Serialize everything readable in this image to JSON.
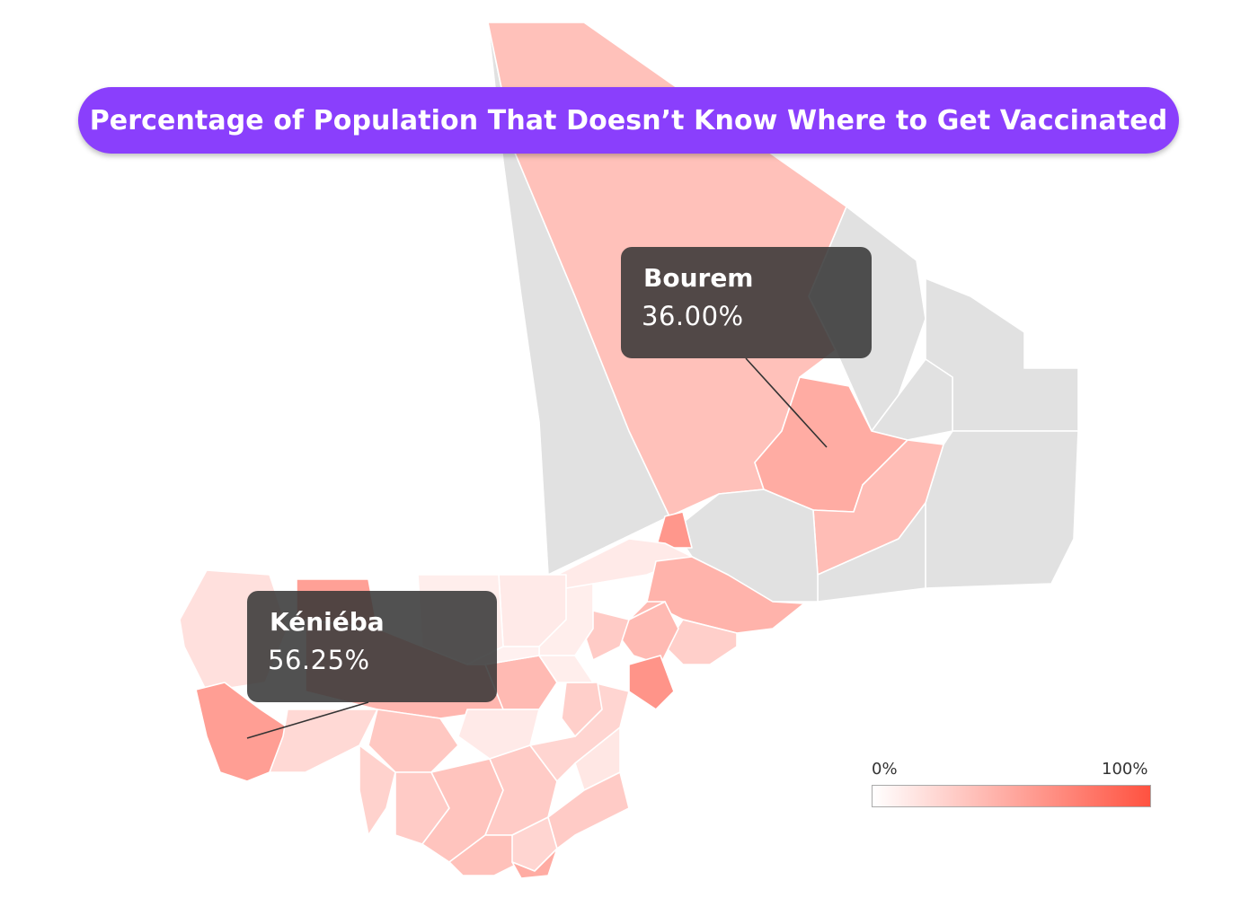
{
  "title": "Percentage of Population That Doesn’t Know Where to Get Vaccinated",
  "colors": {
    "title_background": "#8a3ffc",
    "no_data": "#e1e1e1",
    "scale_low": "#ffffff",
    "scale_high": "#ff5240",
    "tooltip_background": "#343434"
  },
  "legend": {
    "min_label": "0%",
    "max_label": "100%",
    "min_value": 0,
    "max_value": 100
  },
  "tooltips": [
    {
      "id": "bourem",
      "name": "Bourem",
      "value_label": "36.00%",
      "value": 36.0
    },
    {
      "id": "kenieba",
      "name": "Kéniéba",
      "value_label": "56.25%",
      "value": 56.25
    }
  ],
  "chart_data": {
    "type": "choropleth",
    "value_unit": "%",
    "scale": [
      0,
      100
    ],
    "highlighted_regions": [
      {
        "name": "Bourem",
        "value": 36.0
      },
      {
        "name": "Kéniéba",
        "value": 56.25
      }
    ]
  }
}
